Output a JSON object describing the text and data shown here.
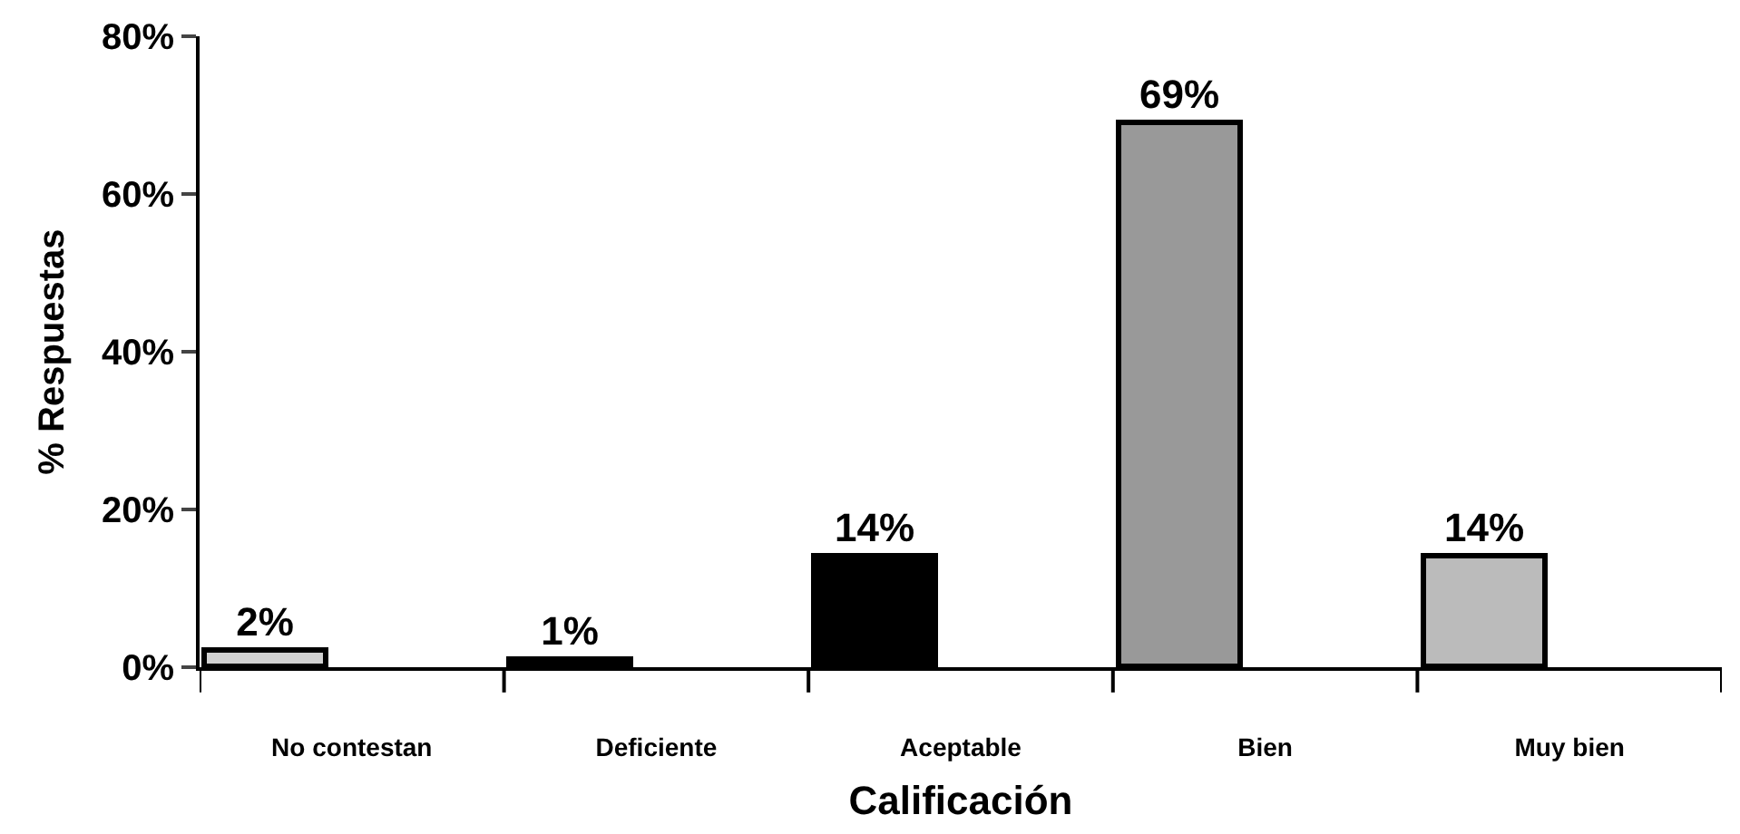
{
  "chart_data": {
    "type": "bar",
    "xlabel": "Calificación",
    "ylabel": "% Respuestas",
    "categories": [
      "No contestan",
      "Deficiente",
      "Aceptable",
      "Bien",
      "Muy bien"
    ],
    "values": [
      2,
      1,
      14,
      69,
      14
    ],
    "colors": [
      "#d0d0d0",
      "#000000",
      "#000000",
      "#999999",
      "#bbbbbb"
    ],
    "value_labels": [
      "2%",
      "1%",
      "14%",
      "69%",
      "14%"
    ],
    "ylim": [
      0,
      80
    ],
    "yticks": [
      {
        "value": 0,
        "label": "0%"
      },
      {
        "value": 20,
        "label": "20%"
      },
      {
        "value": 40,
        "label": "40%"
      },
      {
        "value": 60,
        "label": "60%"
      },
      {
        "value": 80,
        "label": "80%"
      }
    ],
    "legend": false
  }
}
